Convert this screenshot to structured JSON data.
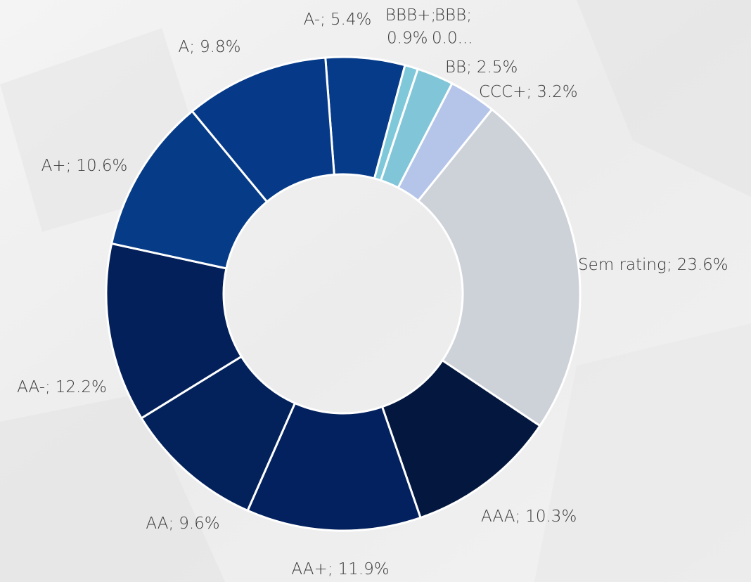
{
  "chart_data": {
    "type": "donut",
    "categories": [
      "A-",
      "BBB+",
      "BBB",
      "BB",
      "CCC+",
      "Sem rating",
      "AAA",
      "AA+",
      "AA",
      "AA-",
      "A+",
      "A"
    ],
    "values": [
      5.4,
      0.9,
      0,
      2.5,
      3.2,
      23.6,
      10.3,
      11.9,
      9.6,
      12.2,
      10.6,
      9.8
    ],
    "value_labels": [
      "5.4%",
      "0.9%",
      "0.0...",
      "2.5%",
      "3.2%",
      "23.6%",
      "10.3%",
      "11.9%",
      "9.6%",
      "12.2%",
      "10.6%",
      "9.8%"
    ],
    "label_separator": ";",
    "colors": [
      "#063b8a",
      "#7ec8da",
      "#7ec8da",
      "#80c6d8",
      "#b5c5ea",
      "#cdd1d8",
      "#04183f",
      "#03215e",
      "#03215a",
      "#03205a",
      "#063b88",
      "#063a88"
    ]
  }
}
